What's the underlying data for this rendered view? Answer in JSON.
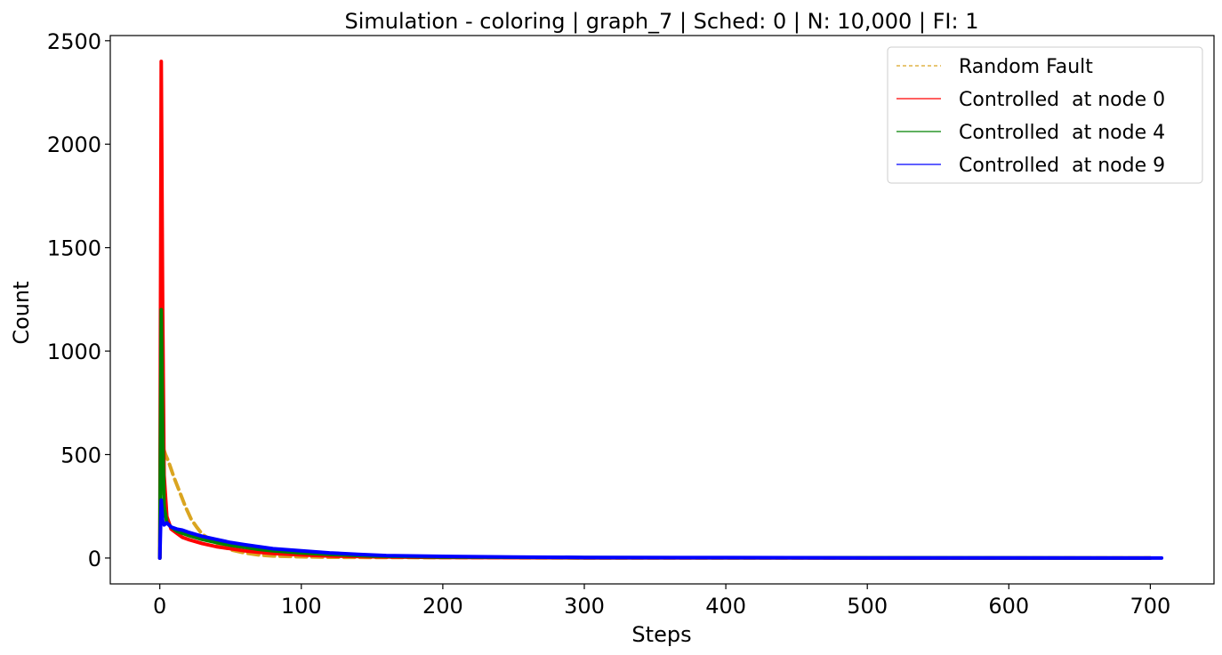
{
  "chart_data": {
    "type": "line",
    "title": "Simulation - coloring | graph_7 | Sched: 0 | N: 10,000 | FI: 1",
    "xlabel": "Steps",
    "ylabel": "Count",
    "xlim": [
      -35,
      745
    ],
    "ylim": [
      -125,
      2525
    ],
    "xticks": [
      0,
      100,
      200,
      300,
      400,
      500,
      600,
      700
    ],
    "yticks": [
      0,
      500,
      1000,
      1500,
      2000,
      2500
    ],
    "legend_position": "top-right",
    "series": [
      {
        "name": "Random Fault",
        "color": "#DAA520",
        "dash": true,
        "x": [
          0,
          1,
          2,
          4,
          6,
          8,
          10,
          14,
          18,
          22,
          26,
          30,
          40,
          50,
          60,
          70,
          80,
          100,
          120,
          150,
          200,
          300,
          700
        ],
        "y": [
          0,
          610,
          540,
          500,
          470,
          430,
          390,
          320,
          250,
          190,
          150,
          115,
          70,
          40,
          25,
          15,
          10,
          6,
          4,
          3,
          2,
          1,
          0
        ]
      },
      {
        "name": "Controlled  at node 0",
        "color": "#FF0000",
        "dash": false,
        "x": [
          0,
          1,
          2,
          3,
          5,
          8,
          12,
          16,
          20,
          30,
          40,
          50,
          60,
          70,
          80,
          100,
          120,
          150,
          200,
          300,
          700
        ],
        "y": [
          0,
          2400,
          1200,
          400,
          200,
          140,
          120,
          100,
          90,
          70,
          55,
          45,
          35,
          28,
          22,
          15,
          10,
          6,
          3,
          1,
          0
        ]
      },
      {
        "name": "Controlled  at node 4",
        "color": "#008000",
        "dash": false,
        "x": [
          0,
          1,
          2,
          3,
          5,
          8,
          12,
          16,
          20,
          30,
          40,
          50,
          60,
          70,
          80,
          100,
          120,
          150,
          200,
          300,
          700
        ],
        "y": [
          0,
          1200,
          600,
          250,
          170,
          150,
          130,
          120,
          110,
          90,
          75,
          62,
          52,
          42,
          35,
          25,
          18,
          10,
          5,
          2,
          0
        ]
      },
      {
        "name": "Controlled  at node 9",
        "color": "#0000FF",
        "dash": false,
        "x": [
          0,
          1,
          2,
          3,
          5,
          8,
          12,
          16,
          20,
          30,
          40,
          50,
          60,
          70,
          80,
          100,
          120,
          140,
          160,
          200,
          250,
          300,
          400,
          500,
          600,
          708
        ],
        "y": [
          0,
          280,
          180,
          160,
          170,
          150,
          140,
          135,
          125,
          105,
          90,
          75,
          65,
          55,
          45,
          35,
          25,
          18,
          12,
          8,
          5,
          3,
          2,
          1,
          1,
          0
        ]
      }
    ]
  }
}
